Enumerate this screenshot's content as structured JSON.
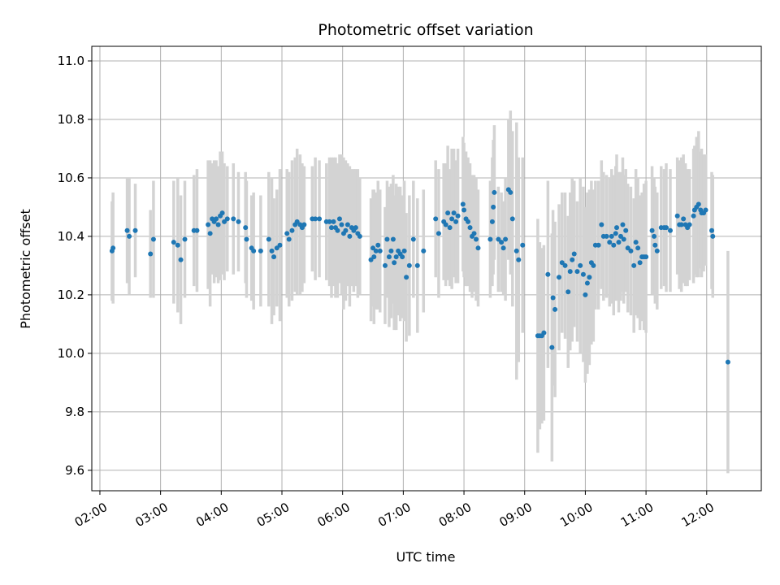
{
  "chart_data": {
    "type": "scatter",
    "title": "Photometric offset variation",
    "xlabel": "UTC time",
    "ylabel": "Photometric offset",
    "xlim": [
      "01:52",
      "12:54"
    ],
    "ylim": [
      9.53,
      11.05
    ],
    "x_ticks": [
      "02:00",
      "03:00",
      "04:00",
      "05:00",
      "06:00",
      "07:00",
      "08:00",
      "09:00",
      "10:00",
      "11:00",
      "12:00"
    ],
    "y_ticks": [
      "9.6",
      "9.8",
      "10.0",
      "10.2",
      "10.4",
      "10.6",
      "10.8",
      "11.0"
    ],
    "grid": true,
    "colors": {
      "points": "#1f77b4",
      "error_bars": "#d3d3d3",
      "grid": "#b0b0b0"
    },
    "series": [
      {
        "columns": [
          "time",
          "offset",
          "error"
        ],
        "points": [
          [
            "02:12",
            10.35,
            0.17
          ],
          [
            "02:13",
            10.36,
            0.19
          ],
          [
            "02:27",
            10.42,
            0.18
          ],
          [
            "02:29",
            10.4,
            0.2
          ],
          [
            "02:35",
            10.42,
            0.16
          ],
          [
            "02:50",
            10.34,
            0.15
          ],
          [
            "02:53",
            10.39,
            0.2
          ],
          [
            "03:13",
            10.38,
            0.21
          ],
          [
            "03:17",
            10.37,
            0.23
          ],
          [
            "03:20",
            10.32,
            0.22
          ],
          [
            "03:24",
            10.39,
            0.2
          ],
          [
            "03:33",
            10.42,
            0.19
          ],
          [
            "03:36",
            10.42,
            0.21
          ],
          [
            "03:47",
            10.44,
            0.22
          ],
          [
            "03:49",
            10.41,
            0.25
          ],
          [
            "03:51",
            10.46,
            0.19
          ],
          [
            "03:53",
            10.45,
            0.21
          ],
          [
            "03:55",
            10.46,
            0.2
          ],
          [
            "03:57",
            10.44,
            0.2
          ],
          [
            "03:59",
            10.47,
            0.22
          ],
          [
            "04:01",
            10.48,
            0.21
          ],
          [
            "04:03",
            10.45,
            0.2
          ],
          [
            "04:06",
            10.46,
            0.18
          ],
          [
            "04:12",
            10.46,
            0.19
          ],
          [
            "04:17",
            10.45,
            0.17
          ],
          [
            "04:24",
            10.43,
            0.19
          ],
          [
            "04:25",
            10.39,
            0.2
          ],
          [
            "04:30",
            10.36,
            0.18
          ],
          [
            "04:32",
            10.35,
            0.2
          ],
          [
            "04:39",
            10.35,
            0.19
          ],
          [
            "04:47",
            10.39,
            0.23
          ],
          [
            "04:50",
            10.35,
            0.25
          ],
          [
            "04:52",
            10.33,
            0.2
          ],
          [
            "04:55",
            10.36,
            0.2
          ],
          [
            "04:58",
            10.37,
            0.26
          ],
          [
            "05:05",
            10.41,
            0.22
          ],
          [
            "05:07",
            10.39,
            0.23
          ],
          [
            "05:10",
            10.42,
            0.24
          ],
          [
            "05:13",
            10.44,
            0.23
          ],
          [
            "05:15",
            10.45,
            0.25
          ],
          [
            "05:18",
            10.44,
            0.24
          ],
          [
            "05:20",
            10.43,
            0.22
          ],
          [
            "05:22",
            10.44,
            0.2
          ],
          [
            "05:30",
            10.46,
            0.18
          ],
          [
            "05:33",
            10.46,
            0.21
          ],
          [
            "05:37",
            10.46,
            0.2
          ],
          [
            "05:44",
            10.45,
            0.2
          ],
          [
            "05:47",
            10.45,
            0.22
          ],
          [
            "05:49",
            10.43,
            0.24
          ],
          [
            "05:51",
            10.45,
            0.22
          ],
          [
            "05:53",
            10.43,
            0.24
          ],
          [
            "05:55",
            10.42,
            0.23
          ],
          [
            "05:57",
            10.46,
            0.22
          ],
          [
            "05:59",
            10.44,
            0.24
          ],
          [
            "06:01",
            10.41,
            0.26
          ],
          [
            "06:03",
            10.42,
            0.24
          ],
          [
            "06:05",
            10.44,
            0.21
          ],
          [
            "06:07",
            10.4,
            0.24
          ],
          [
            "06:09",
            10.43,
            0.2
          ],
          [
            "06:11",
            10.42,
            0.21
          ],
          [
            "06:13",
            10.43,
            0.2
          ],
          [
            "06:15",
            10.41,
            0.22
          ],
          [
            "06:17",
            10.4,
            0.2
          ],
          [
            "06:28",
            10.32,
            0.21
          ],
          [
            "06:30",
            10.36,
            0.2
          ],
          [
            "06:31",
            10.33,
            0.23
          ],
          [
            "06:33",
            10.35,
            0.2
          ],
          [
            "06:35",
            10.37,
            0.22
          ],
          [
            "06:37",
            10.35,
            0.21
          ],
          [
            "06:42",
            10.3,
            0.2
          ],
          [
            "06:44",
            10.39,
            0.2
          ],
          [
            "06:46",
            10.33,
            0.24
          ],
          [
            "06:48",
            10.35,
            0.23
          ],
          [
            "06:50",
            10.39,
            0.22
          ],
          [
            "06:51",
            10.31,
            0.23
          ],
          [
            "06:53",
            10.33,
            0.25
          ],
          [
            "06:55",
            10.35,
            0.22
          ],
          [
            "06:57",
            10.34,
            0.23
          ],
          [
            "06:59",
            10.33,
            0.21
          ],
          [
            "07:01",
            10.35,
            0.24
          ],
          [
            "07:03",
            10.26,
            0.22
          ],
          [
            "07:06",
            10.3,
            0.24
          ],
          [
            "07:10",
            10.39,
            0.2
          ],
          [
            "07:14",
            10.3,
            0.23
          ],
          [
            "07:20",
            10.35,
            0.21
          ],
          [
            "07:32",
            10.46,
            0.2
          ],
          [
            "07:35",
            10.41,
            0.22
          ],
          [
            "07:40",
            10.45,
            0.2
          ],
          [
            "07:42",
            10.44,
            0.21
          ],
          [
            "07:44",
            10.48,
            0.23
          ],
          [
            "07:46",
            10.43,
            0.2
          ],
          [
            "07:48",
            10.46,
            0.24
          ],
          [
            "07:50",
            10.48,
            0.22
          ],
          [
            "07:52",
            10.45,
            0.21
          ],
          [
            "07:54",
            10.47,
            0.23
          ],
          [
            "07:59",
            10.51,
            0.23
          ],
          [
            "08:00",
            10.49,
            0.23
          ],
          [
            "08:02",
            10.46,
            0.23
          ],
          [
            "08:04",
            10.45,
            0.22
          ],
          [
            "08:06",
            10.43,
            0.22
          ],
          [
            "08:08",
            10.4,
            0.21
          ],
          [
            "08:10",
            10.41,
            0.2
          ],
          [
            "08:12",
            10.39,
            0.21
          ],
          [
            "08:14",
            10.36,
            0.2
          ],
          [
            "08:26",
            10.39,
            0.2
          ],
          [
            "08:28",
            10.45,
            0.22
          ],
          [
            "08:29",
            10.5,
            0.23
          ],
          [
            "08:30",
            10.55,
            0.23
          ],
          [
            "08:34",
            10.39,
            0.18
          ],
          [
            "08:37",
            10.38,
            0.17
          ],
          [
            "08:39",
            10.36,
            0.16
          ],
          [
            "08:41",
            10.39,
            0.21
          ],
          [
            "08:44",
            10.56,
            0.24
          ],
          [
            "08:46",
            10.55,
            0.28
          ],
          [
            "08:48",
            10.46,
            0.3
          ],
          [
            "08:52",
            10.35,
            0.44
          ],
          [
            "08:54",
            10.32,
            0.35
          ],
          [
            "08:58",
            10.37,
            0.3
          ],
          [
            "09:13",
            10.06,
            0.4
          ],
          [
            "09:15",
            10.06,
            0.32
          ],
          [
            "09:17",
            10.06,
            0.3
          ],
          [
            "09:19",
            10.07,
            0.3
          ],
          [
            "09:23",
            10.27,
            0.32
          ],
          [
            "09:27",
            10.02,
            0.39
          ],
          [
            "09:28",
            10.19,
            0.3
          ],
          [
            "09:30",
            10.15,
            0.3
          ],
          [
            "09:34",
            10.26,
            0.25
          ],
          [
            "09:37",
            10.31,
            0.24
          ],
          [
            "09:40",
            10.3,
            0.25
          ],
          [
            "09:43",
            10.21,
            0.26
          ],
          [
            "09:45",
            10.28,
            0.27
          ],
          [
            "09:47",
            10.32,
            0.28
          ],
          [
            "09:49",
            10.34,
            0.25
          ],
          [
            "09:52",
            10.28,
            0.24
          ],
          [
            "09:55",
            10.3,
            0.3
          ],
          [
            "09:58",
            10.27,
            0.3
          ],
          [
            "10:00",
            10.2,
            0.3
          ],
          [
            "10:02",
            10.24,
            0.31
          ],
          [
            "10:04",
            10.26,
            0.3
          ],
          [
            "10:06",
            10.31,
            0.28
          ],
          [
            "10:08",
            10.3,
            0.26
          ],
          [
            "10:10",
            10.37,
            0.22
          ],
          [
            "10:13",
            10.37,
            0.22
          ],
          [
            "10:16",
            10.44,
            0.22
          ],
          [
            "10:18",
            10.4,
            0.22
          ],
          [
            "10:21",
            10.4,
            0.21
          ],
          [
            "10:24",
            10.38,
            0.22
          ],
          [
            "10:26",
            10.4,
            0.23
          ],
          [
            "10:28",
            10.37,
            0.24
          ],
          [
            "10:30",
            10.41,
            0.23
          ],
          [
            "10:31",
            10.43,
            0.25
          ],
          [
            "10:33",
            10.38,
            0.24
          ],
          [
            "10:35",
            10.4,
            0.22
          ],
          [
            "10:37",
            10.44,
            0.23
          ],
          [
            "10:38",
            10.39,
            0.22
          ],
          [
            "10:40",
            10.42,
            0.21
          ],
          [
            "10:42",
            10.36,
            0.22
          ],
          [
            "10:45",
            10.35,
            0.22
          ],
          [
            "10:48",
            10.3,
            0.23
          ],
          [
            "10:50",
            10.38,
            0.25
          ],
          [
            "10:52",
            10.36,
            0.24
          ],
          [
            "10:54",
            10.31,
            0.23
          ],
          [
            "10:56",
            10.33,
            0.22
          ],
          [
            "10:58",
            10.33,
            0.25
          ],
          [
            "11:00",
            10.33,
            0.26
          ],
          [
            "11:06",
            10.42,
            0.22
          ],
          [
            "11:08",
            10.4,
            0.2
          ],
          [
            "11:09",
            10.37,
            0.2
          ],
          [
            "11:11",
            10.35,
            0.2
          ],
          [
            "11:15",
            10.43,
            0.21
          ],
          [
            "11:18",
            10.43,
            0.2
          ],
          [
            "11:20",
            10.43,
            0.22
          ],
          [
            "11:24",
            10.42,
            0.21
          ],
          [
            "11:31",
            10.47,
            0.2
          ],
          [
            "11:33",
            10.44,
            0.22
          ],
          [
            "11:35",
            10.44,
            0.23
          ],
          [
            "11:37",
            10.46,
            0.22
          ],
          [
            "11:39",
            10.44,
            0.21
          ],
          [
            "11:41",
            10.43,
            0.2
          ],
          [
            "11:43",
            10.44,
            0.19
          ],
          [
            "11:47",
            10.47,
            0.23
          ],
          [
            "11:48",
            10.49,
            0.22
          ],
          [
            "11:50",
            10.5,
            0.24
          ],
          [
            "11:52",
            10.51,
            0.25
          ],
          [
            "11:54",
            10.49,
            0.2
          ],
          [
            "11:55",
            10.48,
            0.22
          ],
          [
            "11:57",
            10.48,
            0.2
          ],
          [
            "11:59",
            10.49,
            0.19
          ],
          [
            "12:05",
            10.42,
            0.2
          ],
          [
            "12:06",
            10.4,
            0.21
          ],
          [
            "12:21",
            9.97,
            0.38
          ]
        ]
      }
    ]
  }
}
